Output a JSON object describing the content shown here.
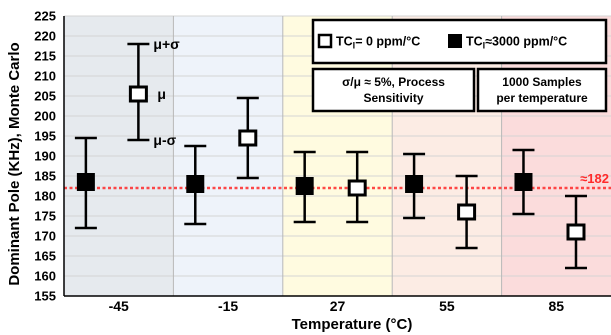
{
  "chart_data": {
    "type": "errorbar",
    "xlabel": "Temperature (°C)",
    "ylabel": "Dominant Pole (KHz), Monte Carlo",
    "ylim": [
      155,
      225
    ],
    "yticks": [
      155,
      160,
      165,
      170,
      175,
      180,
      185,
      190,
      195,
      200,
      205,
      210,
      215,
      220,
      225
    ],
    "categories": [
      "-45",
      "-15",
      "27",
      "55",
      "85"
    ],
    "band_colors": [
      "#e6eaee",
      "#eef3fa",
      "#fffbe0",
      "#fcece4",
      "#fbdcdc"
    ],
    "series": [
      {
        "name": "TCₗ= 0 ppm/°C",
        "legend_sym": "TC",
        "legend_sub": "l",
        "legend_rest": "= 0 ppm/°C",
        "marker": "open-square",
        "mean": [
          205.5,
          194.5,
          182,
          176,
          171
        ],
        "lower": [
          194,
          184.5,
          173.5,
          167,
          162
        ],
        "upper": [
          218,
          204.5,
          191,
          185,
          180
        ]
      },
      {
        "name": "TCₗ≈3000 ppm/°C",
        "legend_sym": "TC",
        "legend_sub": "l",
        "legend_rest": "≈3000 ppm/°C",
        "marker": "filled-square",
        "mean": [
          183.5,
          183,
          182.5,
          183,
          183.5
        ],
        "lower": [
          172,
          173,
          173.5,
          174.5,
          175.5
        ],
        "upper": [
          194.5,
          192.5,
          191,
          190.5,
          191.5
        ]
      }
    ],
    "reference_line": {
      "value": 182,
      "label": "≈182",
      "color": "#ff2a2a"
    },
    "annotations": {
      "upper": "μ+σ",
      "mean": "μ",
      "lower": "μ-σ"
    },
    "notes": [
      {
        "line1": "σ/μ ≈ 5%, Process",
        "line2": "Sensitivity"
      },
      {
        "line1": "1000 Samples",
        "line2": "per temperature"
      }
    ]
  }
}
